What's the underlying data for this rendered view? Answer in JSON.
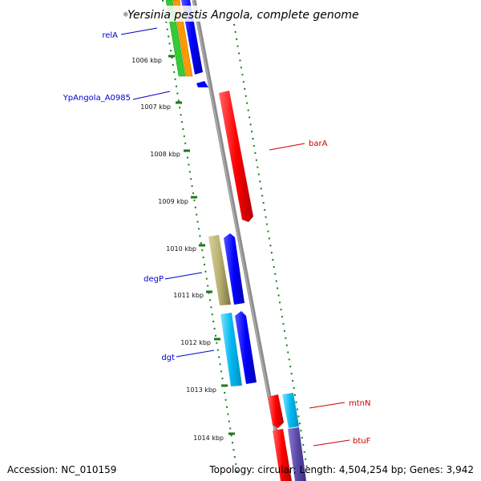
{
  "title": "Yersinia pestis Angola, complete genome",
  "footer": {
    "accession": "Accession: NC_010159",
    "topology": "Topology: circular; Length: 4,504,254 bp; Genes: 3,942"
  },
  "ticks": [
    "1006 kbp",
    "1007 kbp",
    "1008 kbp",
    "1009 kbp",
    "1010 kbp",
    "1011 kbp",
    "1012 kbp",
    "1013 kbp",
    "1014 kbp"
  ],
  "genes": [
    {
      "name": "relA",
      "side": "left",
      "color": "#0000cc"
    },
    {
      "name": "YpAngola_A0985",
      "side": "left",
      "color": "#0000cc"
    },
    {
      "name": "barA",
      "side": "right",
      "color": "#cc0000"
    },
    {
      "name": "degP",
      "side": "left",
      "color": "#0000cc"
    },
    {
      "name": "dgt",
      "side": "left",
      "color": "#0000cc"
    },
    {
      "name": "mtnN",
      "side": "right",
      "color": "#cc0000"
    },
    {
      "name": "btuF",
      "side": "right",
      "color": "#cc0000"
    }
  ],
  "colors": {
    "backbone": "#8c8c8c",
    "tick": "#1a7a1a",
    "cds_forward": "#0000ff",
    "cds_reverse": "#ff0000",
    "trna_green": "#33cc33",
    "orange": "#ff9900",
    "khaki": "#b8b070",
    "cyan": "#00b8f0",
    "purple": "#5a4aa8"
  }
}
